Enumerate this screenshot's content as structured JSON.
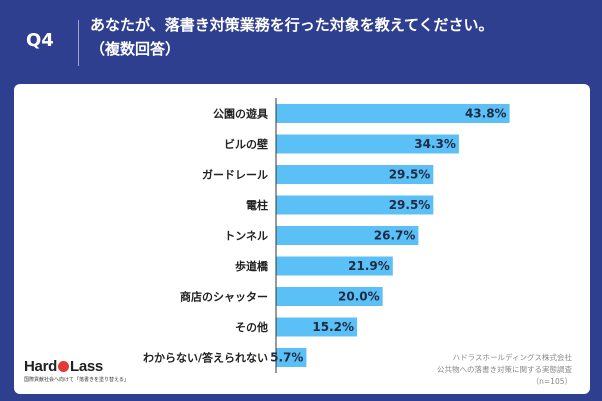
{
  "header": {
    "question_label": "Q4",
    "title_line1": "あなたが、落書き対策業務を行った対象を教えてください。",
    "title_line2": "（複数回答）"
  },
  "chart_data": {
    "type": "bar",
    "orientation": "horizontal",
    "categories": [
      "公園の遊具",
      "ビルの壁",
      "ガードレール",
      "電柱",
      "トンネル",
      "歩道橋",
      "商店のシャッター",
      "その他",
      "わからない/答えられない"
    ],
    "values": [
      43.8,
      34.3,
      29.5,
      29.5,
      26.7,
      21.9,
      20.0,
      15.2,
      5.7
    ],
    "value_labels": [
      "43.8%",
      "34.3%",
      "29.5%",
      "29.5%",
      "26.7%",
      "21.9%",
      "20.0%",
      "15.2%",
      "5.7%"
    ],
    "xlim": [
      0,
      45
    ],
    "bar_color": "#5bc0f5",
    "grid": false
  },
  "footer": {
    "logo_left": "Hard",
    "logo_right": "Lass",
    "logo_tagline": "国際貢献社会へ向けて「落書きを塗り替える」",
    "source_line1": "ハドラスホールディングス株式会社",
    "source_line2": "公共物への落書き対策に関する実態調査",
    "source_line3": "（n=105）"
  },
  "colors": {
    "background": "#2f3f8f",
    "card": "#ffffff",
    "bar": "#5bc0f5",
    "axis": "#333333"
  }
}
